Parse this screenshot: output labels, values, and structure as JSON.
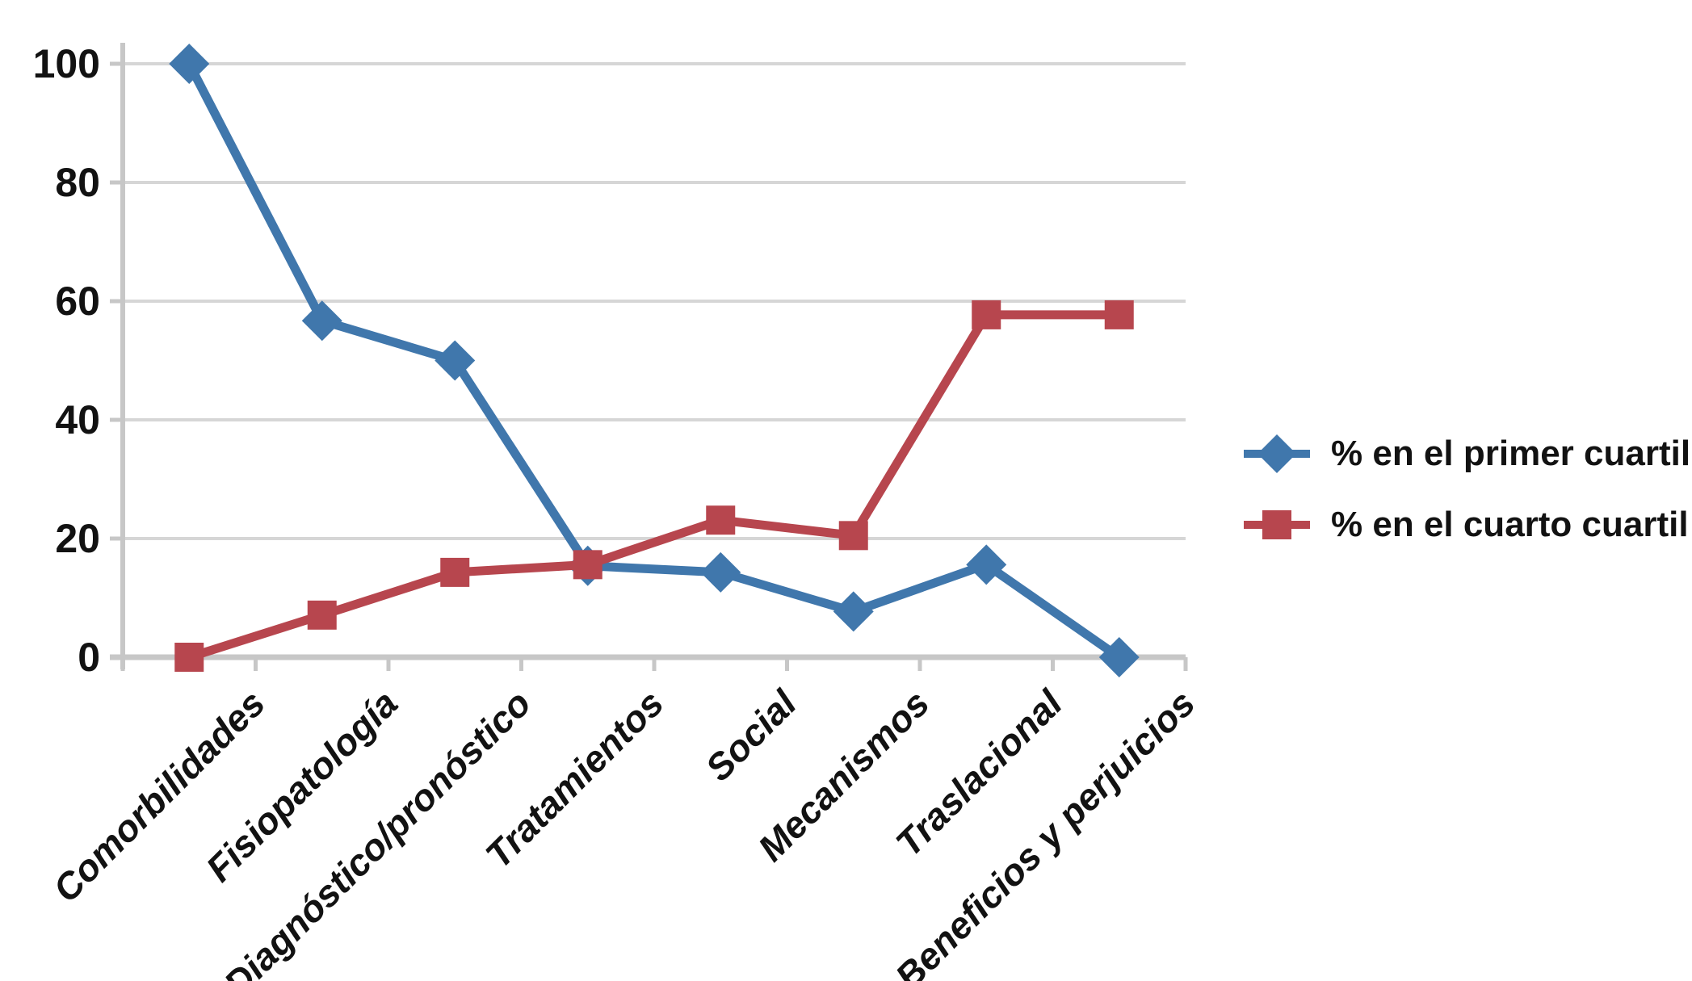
{
  "chart_data": {
    "type": "line",
    "title": "",
    "categories": [
      "Comorbilidades",
      "Fisiopatología",
      "Diagnóstico/pronóstico",
      "Tratamientos",
      "Social",
      "Mecanismos",
      "Traslacional",
      "Beneficios y perjuicios"
    ],
    "series": [
      {
        "name": "% en el primer cuartil",
        "marker": "diamond",
        "color": "#4077AC",
        "values": [
          100,
          56.7,
          50,
          15.4,
          14.3,
          7.7,
          15.6,
          0
        ]
      },
      {
        "name": "% en el cuarto cuartil",
        "marker": "square",
        "color": "#B7464E",
        "values": [
          0,
          7.1,
          14.3,
          15.6,
          23.1,
          20.5,
          57.7,
          57.7
        ]
      }
    ],
    "y_axis": {
      "min": 0,
      "max": 100,
      "tick_interval": 20,
      "tick_labels": [
        "0",
        "20",
        "40",
        "60",
        "80",
        "100"
      ]
    },
    "x_axis_label": "",
    "y_axis_label": "",
    "grid": true,
    "legend_position": "right"
  },
  "style": {
    "gridline_color": "#D6D6D6",
    "axis_color": "#C7C7C7",
    "text_color": "#121212",
    "background": "#FFFFFF"
  }
}
